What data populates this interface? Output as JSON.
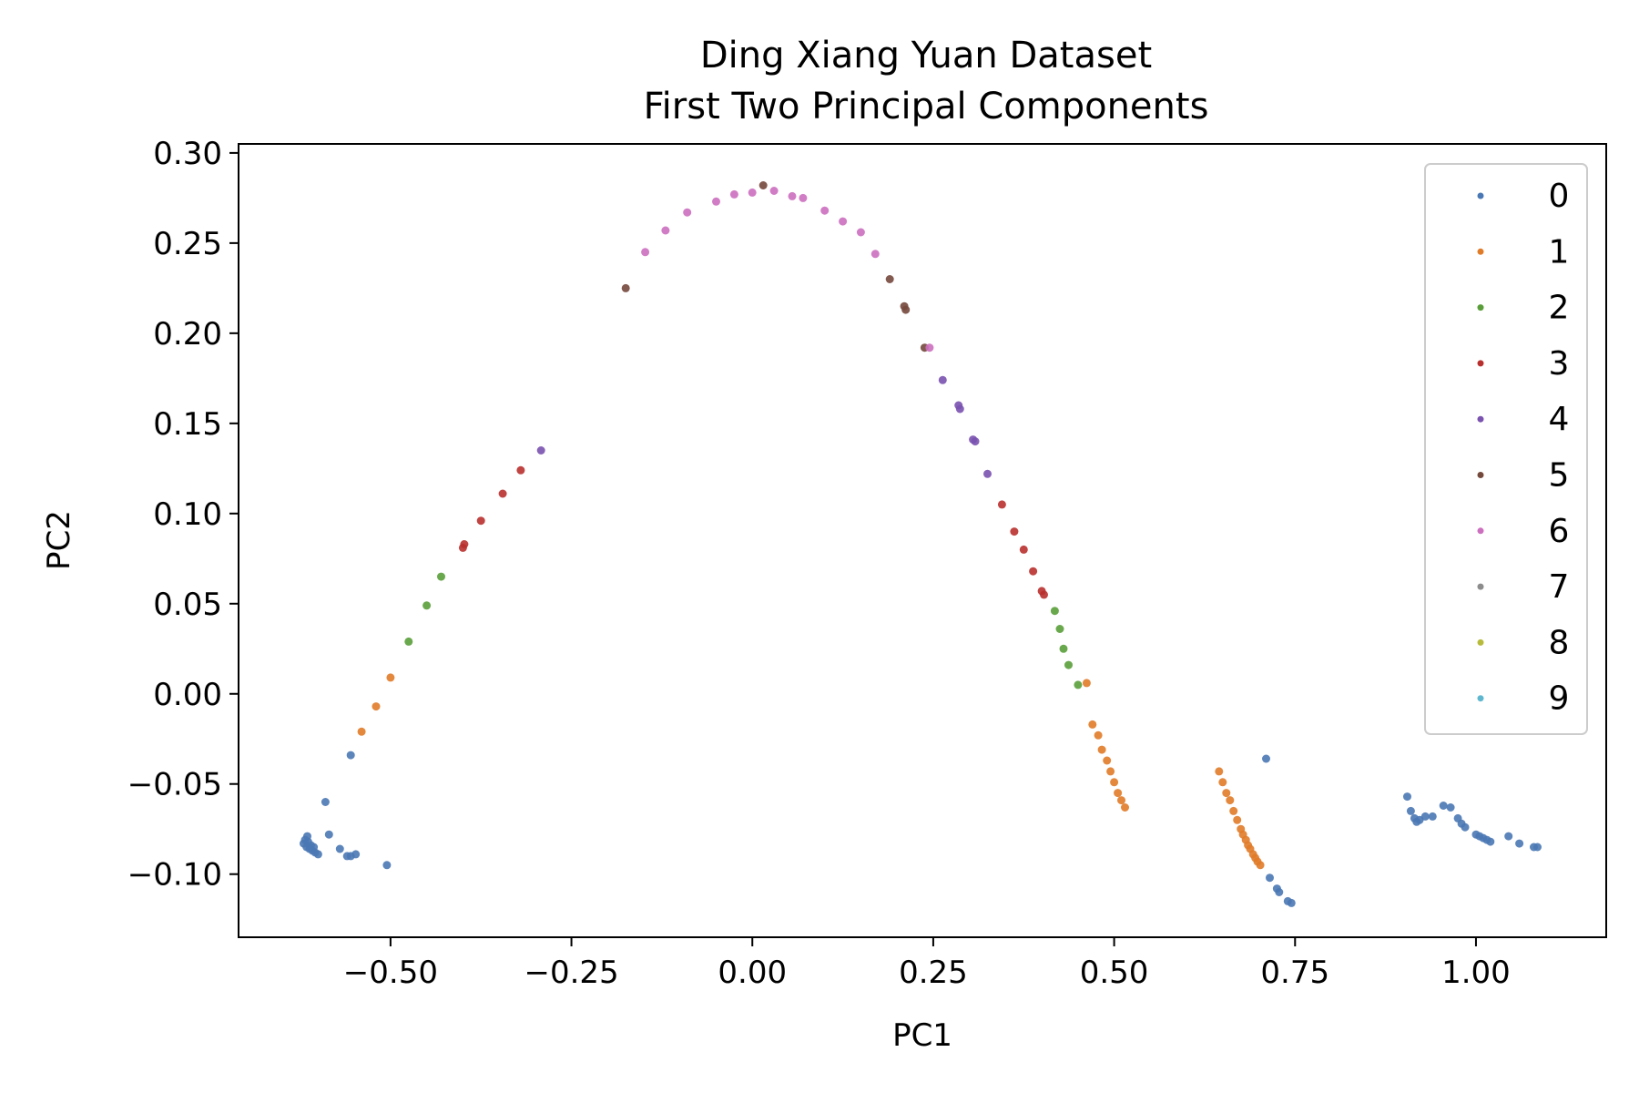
{
  "chart_data": {
    "type": "scatter",
    "title_line1": "Ding Xiang Yuan Dataset",
    "title_line2": "First Two Principal Components",
    "xlabel": "PC1",
    "ylabel": "PC2",
    "xlim": [
      -0.71,
      1.18
    ],
    "ylim": [
      -0.135,
      0.305
    ],
    "xticks": [
      -0.5,
      -0.25,
      0.0,
      0.25,
      0.5,
      0.75,
      1.0
    ],
    "xtick_labels": [
      "−0.50",
      "−0.25",
      "0.00",
      "0.25",
      "0.50",
      "0.75",
      "1.00"
    ],
    "yticks": [
      0.3,
      0.25,
      0.2,
      0.15,
      0.1,
      0.05,
      0.0,
      -0.05,
      -0.1
    ],
    "ytick_labels": [
      "0.30",
      "0.25",
      "0.20",
      "0.15",
      "0.10",
      "0.05",
      "0.00",
      "−0.05",
      "−0.10"
    ],
    "grid": false,
    "legend_position": "top-right",
    "series": [
      {
        "name": "0",
        "color": "#4a78b4",
        "points": [
          [
            -0.62,
            -0.083
          ],
          [
            -0.618,
            -0.081
          ],
          [
            -0.616,
            -0.085
          ],
          [
            -0.614,
            -0.082
          ],
          [
            -0.612,
            -0.086
          ],
          [
            -0.61,
            -0.084
          ],
          [
            -0.608,
            -0.087
          ],
          [
            -0.606,
            -0.085
          ],
          [
            -0.604,
            -0.088
          ],
          [
            -0.615,
            -0.079
          ],
          [
            -0.6,
            -0.089
          ],
          [
            -0.59,
            -0.06
          ],
          [
            -0.585,
            -0.078
          ],
          [
            -0.57,
            -0.086
          ],
          [
            -0.56,
            -0.09
          ],
          [
            -0.555,
            -0.09
          ],
          [
            -0.548,
            -0.089
          ],
          [
            -0.555,
            -0.034
          ],
          [
            -0.505,
            -0.095
          ],
          [
            0.71,
            -0.036
          ],
          [
            0.715,
            -0.102
          ],
          [
            0.725,
            -0.108
          ],
          [
            0.728,
            -0.11
          ],
          [
            0.74,
            -0.115
          ],
          [
            0.745,
            -0.116
          ],
          [
            0.905,
            -0.057
          ],
          [
            0.91,
            -0.065
          ],
          [
            0.915,
            -0.069
          ],
          [
            0.918,
            -0.071
          ],
          [
            0.922,
            -0.07
          ],
          [
            0.93,
            -0.068
          ],
          [
            0.94,
            -0.068
          ],
          [
            0.955,
            -0.062
          ],
          [
            0.965,
            -0.063
          ],
          [
            0.975,
            -0.069
          ],
          [
            0.98,
            -0.072
          ],
          [
            0.985,
            -0.074
          ],
          [
            1.0,
            -0.078
          ],
          [
            1.005,
            -0.079
          ],
          [
            1.01,
            -0.08
          ],
          [
            1.015,
            -0.081
          ],
          [
            1.02,
            -0.082
          ],
          [
            1.045,
            -0.079
          ],
          [
            1.06,
            -0.083
          ],
          [
            1.08,
            -0.085
          ],
          [
            1.085,
            -0.085
          ]
        ]
      },
      {
        "name": "1",
        "color": "#e07b28",
        "points": [
          [
            -0.54,
            -0.021
          ],
          [
            -0.52,
            -0.007
          ],
          [
            -0.5,
            0.009
          ],
          [
            0.462,
            0.006
          ],
          [
            0.47,
            -0.017
          ],
          [
            0.478,
            -0.023
          ],
          [
            0.483,
            -0.031
          ],
          [
            0.49,
            -0.037
          ],
          [
            0.495,
            -0.043
          ],
          [
            0.5,
            -0.049
          ],
          [
            0.505,
            -0.055
          ],
          [
            0.51,
            -0.059
          ],
          [
            0.515,
            -0.063
          ],
          [
            0.645,
            -0.043
          ],
          [
            0.65,
            -0.049
          ],
          [
            0.655,
            -0.055
          ],
          [
            0.66,
            -0.059
          ],
          [
            0.665,
            -0.065
          ],
          [
            0.67,
            -0.07
          ],
          [
            0.675,
            -0.075
          ],
          [
            0.678,
            -0.078
          ],
          [
            0.682,
            -0.081
          ],
          [
            0.685,
            -0.084
          ],
          [
            0.688,
            -0.086
          ],
          [
            0.692,
            -0.089
          ],
          [
            0.695,
            -0.091
          ],
          [
            0.698,
            -0.093
          ],
          [
            0.702,
            -0.095
          ]
        ]
      },
      {
        "name": "2",
        "color": "#5a9e3a",
        "points": [
          [
            -0.475,
            0.029
          ],
          [
            -0.45,
            0.049
          ],
          [
            -0.43,
            0.065
          ],
          [
            0.418,
            0.046
          ],
          [
            0.425,
            0.036
          ],
          [
            0.43,
            0.025
          ],
          [
            0.437,
            0.016
          ],
          [
            0.45,
            0.005
          ]
        ]
      },
      {
        "name": "3",
        "color": "#b8302e",
        "points": [
          [
            -0.4,
            0.081
          ],
          [
            -0.398,
            0.083
          ],
          [
            -0.375,
            0.096
          ],
          [
            -0.345,
            0.111
          ],
          [
            -0.32,
            0.124
          ],
          [
            0.345,
            0.105
          ],
          [
            0.362,
            0.09
          ],
          [
            0.375,
            0.08
          ],
          [
            0.388,
            0.068
          ],
          [
            0.4,
            0.057
          ],
          [
            0.403,
            0.055
          ]
        ]
      },
      {
        "name": "4",
        "color": "#7a52b0",
        "points": [
          [
            -0.292,
            0.135
          ],
          [
            0.263,
            0.174
          ],
          [
            0.285,
            0.16
          ],
          [
            0.287,
            0.158
          ],
          [
            0.305,
            0.141
          ],
          [
            0.308,
            0.14
          ],
          [
            0.325,
            0.122
          ]
        ]
      },
      {
        "name": "5",
        "color": "#75483c",
        "points": [
          [
            -0.175,
            0.225
          ],
          [
            0.015,
            0.282
          ],
          [
            0.19,
            0.23
          ],
          [
            0.21,
            0.215
          ],
          [
            0.212,
            0.213
          ],
          [
            0.238,
            0.192
          ]
        ]
      },
      {
        "name": "6",
        "color": "#cc6fbf",
        "points": [
          [
            -0.148,
            0.245
          ],
          [
            -0.12,
            0.257
          ],
          [
            -0.09,
            0.267
          ],
          [
            -0.05,
            0.273
          ],
          [
            -0.025,
            0.277
          ],
          [
            0.0,
            0.278
          ],
          [
            0.03,
            0.279
          ],
          [
            0.055,
            0.276
          ],
          [
            0.07,
            0.275
          ],
          [
            0.1,
            0.268
          ],
          [
            0.125,
            0.262
          ],
          [
            0.15,
            0.256
          ],
          [
            0.17,
            0.244
          ],
          [
            0.245,
            0.192
          ]
        ]
      },
      {
        "name": "7",
        "color": "#8c8c8c",
        "points": []
      },
      {
        "name": "8",
        "color": "#b7bb3c",
        "points": []
      },
      {
        "name": "9",
        "color": "#5fb7cf",
        "points": []
      }
    ]
  }
}
